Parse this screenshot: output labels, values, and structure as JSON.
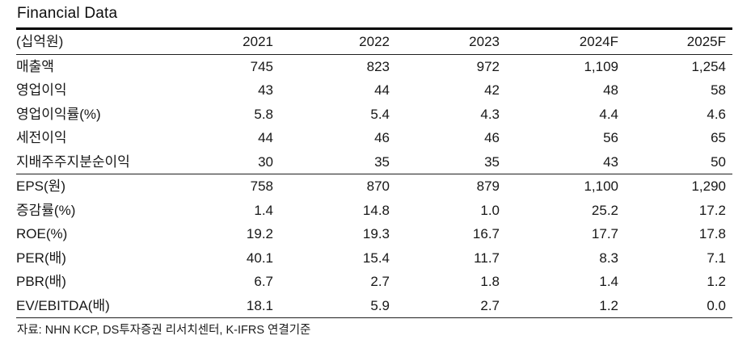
{
  "title": "Financial Data",
  "table": {
    "unit_label": "(십억원)",
    "columns": [
      "2021",
      "2022",
      "2023",
      "2024F",
      "2025F"
    ],
    "sections": [
      {
        "rows": [
          {
            "label": "매출액",
            "values": [
              "745",
              "823",
              "972",
              "1,109",
              "1,254"
            ]
          },
          {
            "label": "영업이익",
            "values": [
              "43",
              "44",
              "42",
              "48",
              "58"
            ]
          },
          {
            "label": "영업이익률(%)",
            "values": [
              "5.8",
              "5.4",
              "4.3",
              "4.4",
              "4.6"
            ]
          },
          {
            "label": "세전이익",
            "values": [
              "44",
              "46",
              "46",
              "56",
              "65"
            ]
          },
          {
            "label": "지배주주지분순이익",
            "values": [
              "30",
              "35",
              "35",
              "43",
              "50"
            ]
          }
        ]
      },
      {
        "rows": [
          {
            "label": "EPS(원)",
            "values": [
              "758",
              "870",
              "879",
              "1,100",
              "1,290"
            ]
          },
          {
            "label": "증감률(%)",
            "values": [
              "1.4",
              "14.8",
              "1.0",
              "25.2",
              "17.2"
            ]
          },
          {
            "label": "ROE(%)",
            "values": [
              "19.2",
              "19.3",
              "16.7",
              "17.7",
              "17.8"
            ]
          },
          {
            "label": "PER(배)",
            "values": [
              "40.1",
              "15.4",
              "11.7",
              "8.3",
              "7.1"
            ]
          },
          {
            "label": "PBR(배)",
            "values": [
              "6.7",
              "2.7",
              "1.8",
              "1.4",
              "1.2"
            ]
          },
          {
            "label": "EV/EBITDA(배)",
            "values": [
              "18.1",
              "5.9",
              "2.7",
              "1.2",
              "0.0"
            ]
          }
        ]
      }
    ]
  },
  "footer": {
    "source_note": "자료: NHN KCP, DS투자증권 리서치센터, K-IFRS 연결기준"
  },
  "colors": {
    "text": "#171717",
    "rule_heavy": "#000000",
    "rule_light": "#1f1f1f",
    "background": "#ffffff"
  }
}
